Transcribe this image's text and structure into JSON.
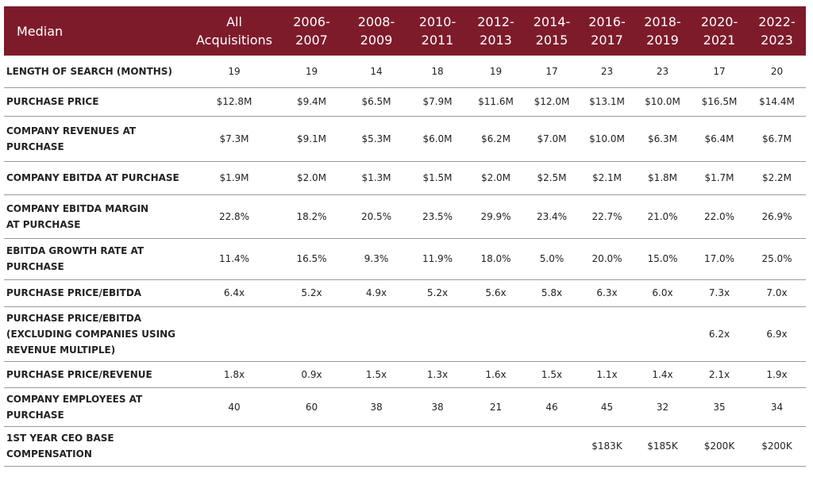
{
  "table": {
    "header": {
      "label": "Median",
      "columns": [
        [
          "All",
          "Acquisitions"
        ],
        [
          "2006-",
          "2007"
        ],
        [
          "2008-",
          "2009"
        ],
        [
          "2010-",
          "2011"
        ],
        [
          "2012-",
          "2013"
        ],
        [
          "2014-",
          "2015"
        ],
        [
          "2016-",
          "2017"
        ],
        [
          "2018-",
          "2019"
        ],
        [
          "2020-",
          "2021"
        ],
        [
          "2022-",
          "2023"
        ]
      ]
    },
    "rows": [
      {
        "label": [
          "LENGTH OF SEARCH (MONTHS)"
        ],
        "values": [
          "19",
          "19",
          "14",
          "18",
          "19",
          "17",
          "23",
          "23",
          "17",
          "20"
        ]
      },
      {
        "label": [
          "PURCHASE PRICE"
        ],
        "values": [
          "$12.8M",
          "$9.4M",
          "$6.5M",
          "$7.9M",
          "$11.6M",
          "$12.0M",
          "$13.1M",
          "$10.0M",
          "$16.5M",
          "$14.4M"
        ]
      },
      {
        "label": [
          "COMPANY REVENUES AT",
          "PURCHASE"
        ],
        "values": [
          "$7.3M",
          "$9.1M",
          "$5.3M",
          "$6.0M",
          "$6.2M",
          "$7.0M",
          "$10.0M",
          "$6.3M",
          "$6.4M",
          "$6.7M"
        ]
      },
      {
        "label": [
          "COMPANY EBITDA AT PURCHASE"
        ],
        "values": [
          "$1.9M",
          "$2.0M",
          "$1.3M",
          "$1.5M",
          "$2.0M",
          "$2.5M",
          "$2.1M",
          "$1.8M",
          "$1.7M",
          "$2.2M"
        ]
      },
      {
        "label": [
          "COMPANY EBITDA MARGIN",
          "AT PURCHASE"
        ],
        "values": [
          "22.8%",
          "18.2%",
          "20.5%",
          "23.5%",
          "29.9%",
          "23.4%",
          "22.7%",
          "21.0%",
          "22.0%",
          "26.9%"
        ]
      },
      {
        "label": [
          "EBITDA GROWTH RATE AT",
          "PURCHASE"
        ],
        "values": [
          "11.4%",
          "16.5%",
          "9.3%",
          "11.9%",
          "18.0%",
          "5.0%",
          "20.0%",
          "15.0%",
          "17.0%",
          "25.0%"
        ]
      },
      {
        "label": [
          "PURCHASE PRICE/EBITDA"
        ],
        "values": [
          "6.4x",
          "5.2x",
          "4.9x",
          "5.2x",
          "5.6x",
          "5.8x",
          "6.3x",
          "6.0x",
          "7.3x",
          "7.0x"
        ]
      },
      {
        "label": [
          "PURCHASE PRICE/EBITDA",
          "(EXCLUDING COMPANIES USING",
          "REVENUE MULTIPLE)"
        ],
        "values": [
          null,
          null,
          null,
          null,
          null,
          null,
          null,
          null,
          "6.2x",
          "6.9x"
        ]
      },
      {
        "label": [
          "PURCHASE PRICE/REVENUE"
        ],
        "values": [
          "1.8x",
          "0.9x",
          "1.5x",
          "1.3x",
          "1.6x",
          "1.5x",
          "1.1x",
          "1.4x",
          "2.1x",
          "1.9x"
        ]
      },
      {
        "label": [
          "COMPANY EMPLOYEES AT",
          "PURCHASE"
        ],
        "values": [
          "40",
          "60",
          "38",
          "38",
          "21",
          "46",
          "45",
          "32",
          "35",
          "34"
        ]
      },
      {
        "label": [
          "1ST YEAR CEO BASE",
          "COMPENSATION"
        ],
        "values": [
          null,
          null,
          null,
          null,
          null,
          null,
          "$183K",
          "$185K",
          "$200K",
          "$200K"
        ]
      }
    ]
  }
}
